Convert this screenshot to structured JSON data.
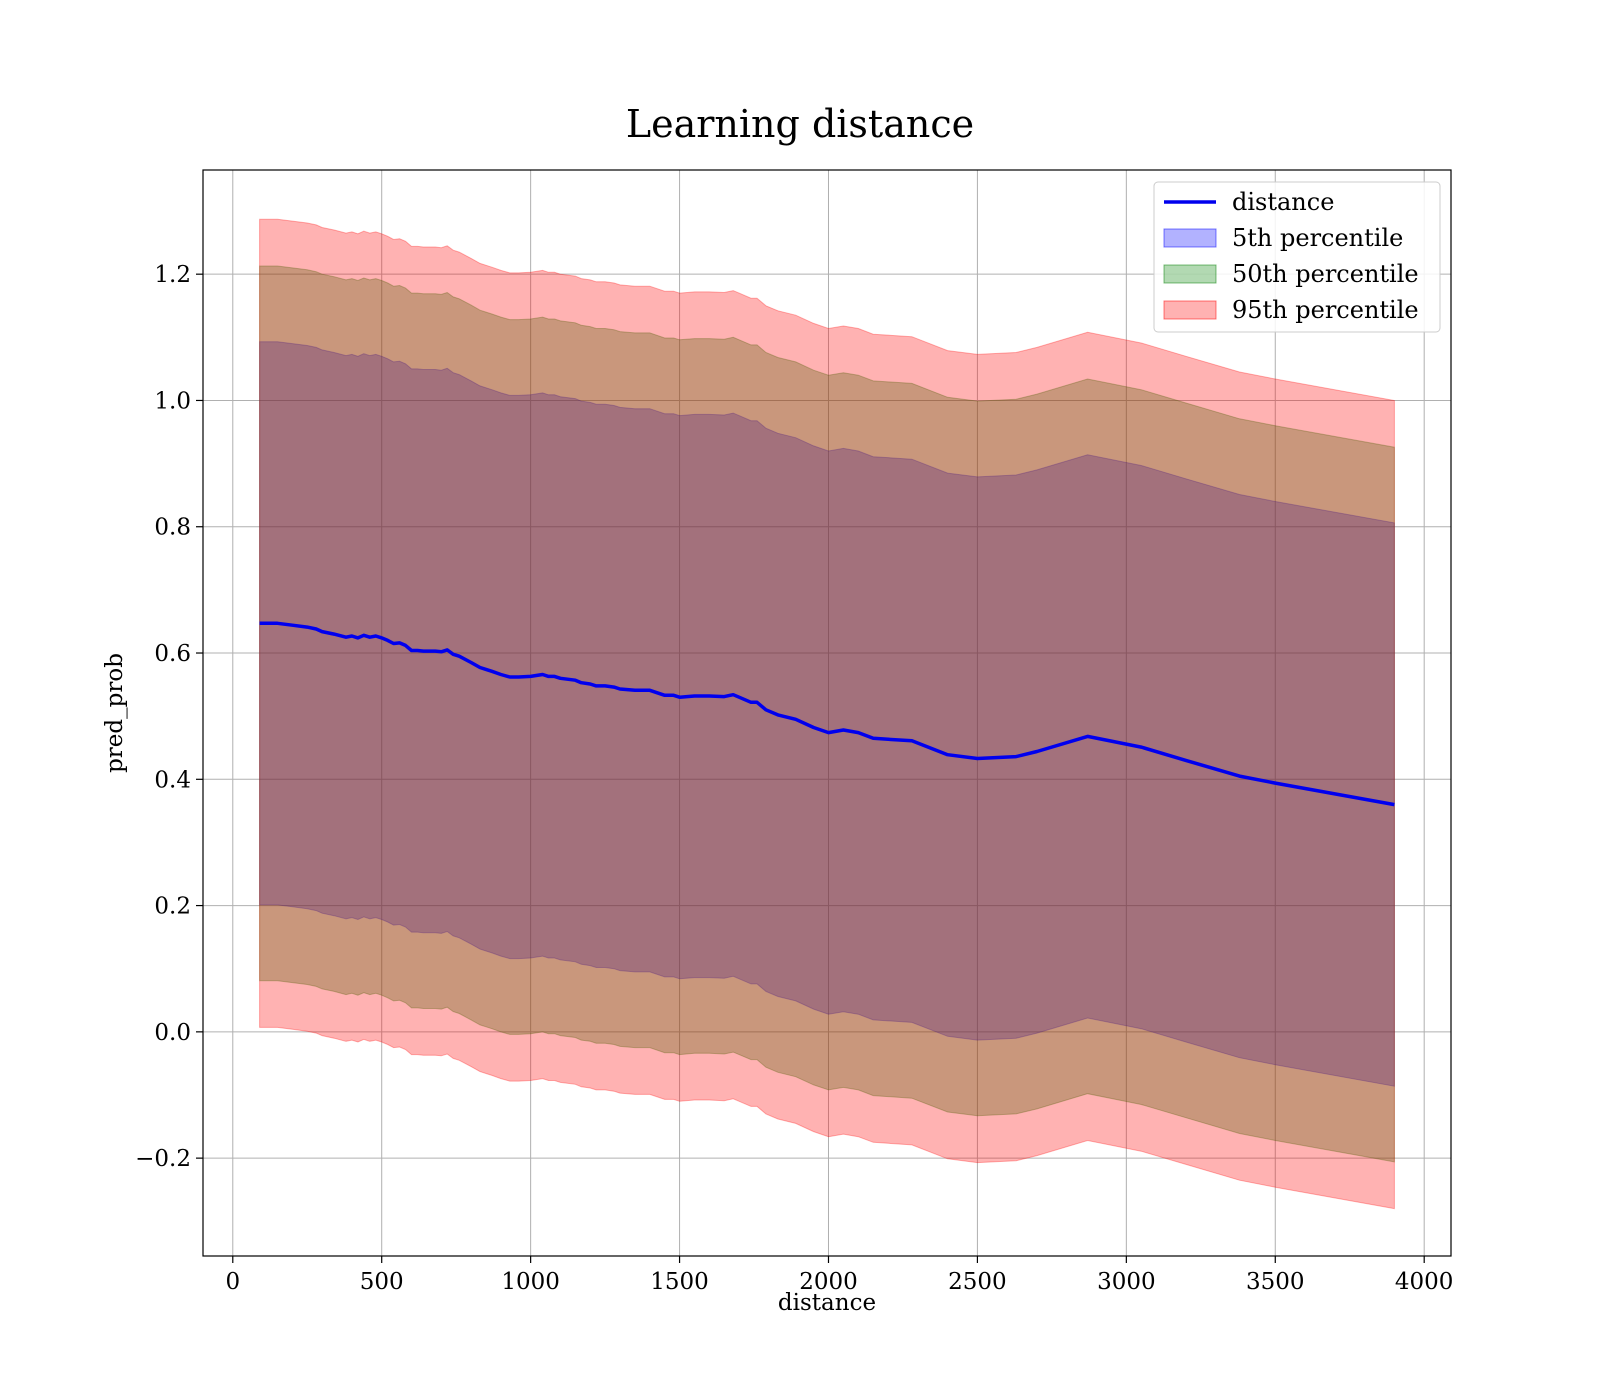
{
  "chart_data": {
    "type": "line",
    "title": "Learning distance",
    "xlabel": "distance",
    "ylabel": "pred_prob",
    "xlim": [
      -100,
      4090
    ],
    "ylim": [
      -0.355,
      1.365
    ],
    "xticks": [
      0,
      500,
      1000,
      1500,
      2000,
      2500,
      3000,
      3500,
      4000
    ],
    "xtick_labels": [
      "0",
      "500",
      "1000",
      "1500",
      "2000",
      "2500",
      "3000",
      "3500",
      "4000"
    ],
    "yticks": [
      -0.2,
      0.0,
      0.2,
      0.4,
      0.6,
      0.8,
      1.0,
      1.2
    ],
    "ytick_labels": [
      "−0.2",
      "0.0",
      "0.2",
      "0.4",
      "0.6",
      "0.8",
      "1.0",
      "1.2"
    ],
    "grid": true,
    "legend_position": "top-right",
    "x": [
      90,
      150,
      200,
      250,
      280,
      300,
      340,
      380,
      400,
      420,
      440,
      460,
      480,
      500,
      520,
      540,
      560,
      580,
      600,
      620,
      640,
      680,
      700,
      720,
      740,
      760,
      800,
      830,
      850,
      870,
      900,
      930,
      960,
      1000,
      1040,
      1060,
      1080,
      1100,
      1150,
      1170,
      1200,
      1220,
      1250,
      1280,
      1300,
      1350,
      1400,
      1450,
      1480,
      1500,
      1550,
      1600,
      1650,
      1680,
      1700,
      1740,
      1760,
      1790,
      1830,
      1890,
      1950,
      2000,
      2050,
      2100,
      2150,
      2280,
      2400,
      2500,
      2630,
      2700,
      2870,
      3050,
      3200,
      3380,
      3500,
      3900
    ],
    "series": [
      {
        "name": "distance",
        "kind": "line",
        "color": "#0000ee",
        "values": [
          0.647,
          0.647,
          0.644,
          0.641,
          0.638,
          0.634,
          0.63,
          0.625,
          0.627,
          0.624,
          0.628,
          0.625,
          0.627,
          0.624,
          0.62,
          0.615,
          0.616,
          0.612,
          0.604,
          0.604,
          0.603,
          0.603,
          0.602,
          0.605,
          0.598,
          0.595,
          0.585,
          0.577,
          0.574,
          0.571,
          0.566,
          0.562,
          0.562,
          0.563,
          0.566,
          0.563,
          0.563,
          0.56,
          0.557,
          0.553,
          0.551,
          0.548,
          0.548,
          0.546,
          0.543,
          0.541,
          0.541,
          0.533,
          0.533,
          0.53,
          0.532,
          0.532,
          0.531,
          0.534,
          0.53,
          0.522,
          0.522,
          0.51,
          0.502,
          0.495,
          0.482,
          0.474,
          0.478,
          0.474,
          0.465,
          0.461,
          0.439,
          0.433,
          0.436,
          0.444,
          0.468,
          0.451,
          0.43,
          0.405,
          0.394,
          0.36
        ]
      },
      {
        "name": "5th percentile",
        "kind": "band",
        "color": "#0000ff",
        "opacity": 0.3,
        "lower_offset": -0.446,
        "upper_offset": 0.446
      },
      {
        "name": "50th percentile",
        "kind": "band",
        "color": "#008000",
        "opacity": 0.3,
        "lower_offset": -0.566,
        "upper_offset": 0.566
      },
      {
        "name": "95th percentile",
        "kind": "band",
        "color": "#ff0000",
        "opacity": 0.3,
        "lower_offset": -0.64,
        "upper_offset": 0.64
      }
    ]
  }
}
